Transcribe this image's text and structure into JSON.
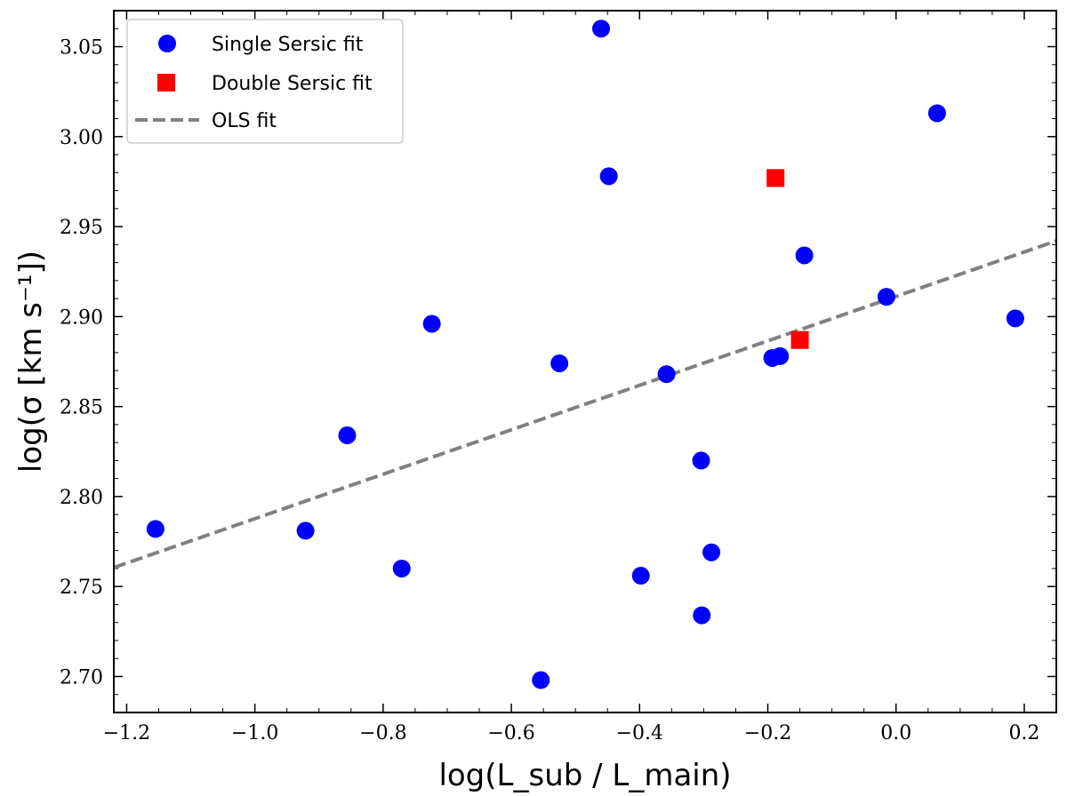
{
  "chart_data": {
    "type": "scatter",
    "title": "",
    "xlabel": "log(L_sub / L_main)",
    "ylabel": "log(σ [km s⁻¹])",
    "xlim": [
      -1.22,
      0.25
    ],
    "ylim": [
      2.68,
      3.07
    ],
    "x_ticks": [
      -1.2,
      -1.0,
      -0.8,
      -0.6,
      -0.4,
      -0.2,
      0.0,
      0.2
    ],
    "x_tick_labels": [
      "−1.2",
      "−1.0",
      "−0.8",
      "−0.6",
      "−0.4",
      "−0.2",
      "0.0",
      "0.2"
    ],
    "y_ticks": [
      2.7,
      2.75,
      2.8,
      2.85,
      2.9,
      2.95,
      3.0,
      3.05
    ],
    "y_tick_labels": [
      "2.70",
      "2.75",
      "2.80",
      "2.85",
      "2.90",
      "2.95",
      "3.00",
      "3.05"
    ],
    "legend_position": "top-left",
    "series": [
      {
        "name": "Single Sersic fit",
        "marker": "circle",
        "color": "#0000ff",
        "points": [
          [
            -1.155,
            2.782
          ],
          [
            -0.921,
            2.781
          ],
          [
            -0.856,
            2.834
          ],
          [
            -0.771,
            2.76
          ],
          [
            -0.724,
            2.896
          ],
          [
            -0.554,
            2.698
          ],
          [
            -0.525,
            2.874
          ],
          [
            -0.46,
            3.06
          ],
          [
            -0.448,
            2.978
          ],
          [
            -0.398,
            2.756
          ],
          [
            -0.358,
            2.868
          ],
          [
            -0.304,
            2.82
          ],
          [
            -0.303,
            2.734
          ],
          [
            -0.288,
            2.769
          ],
          [
            -0.193,
            2.877
          ],
          [
            -0.181,
            2.878
          ],
          [
            -0.143,
            2.934
          ],
          [
            -0.015,
            2.911
          ],
          [
            0.064,
            3.013
          ],
          [
            0.186,
            2.899
          ]
        ]
      },
      {
        "name": "Double Sersic fit",
        "marker": "square",
        "color": "#ff0000",
        "points": [
          [
            -0.188,
            2.977
          ],
          [
            -0.15,
            2.887
          ]
        ]
      },
      {
        "name": "OLS fit",
        "marker": "dashed-line",
        "color": "#808080",
        "slope": 0.1235,
        "intercept": 2.9112
      }
    ]
  }
}
